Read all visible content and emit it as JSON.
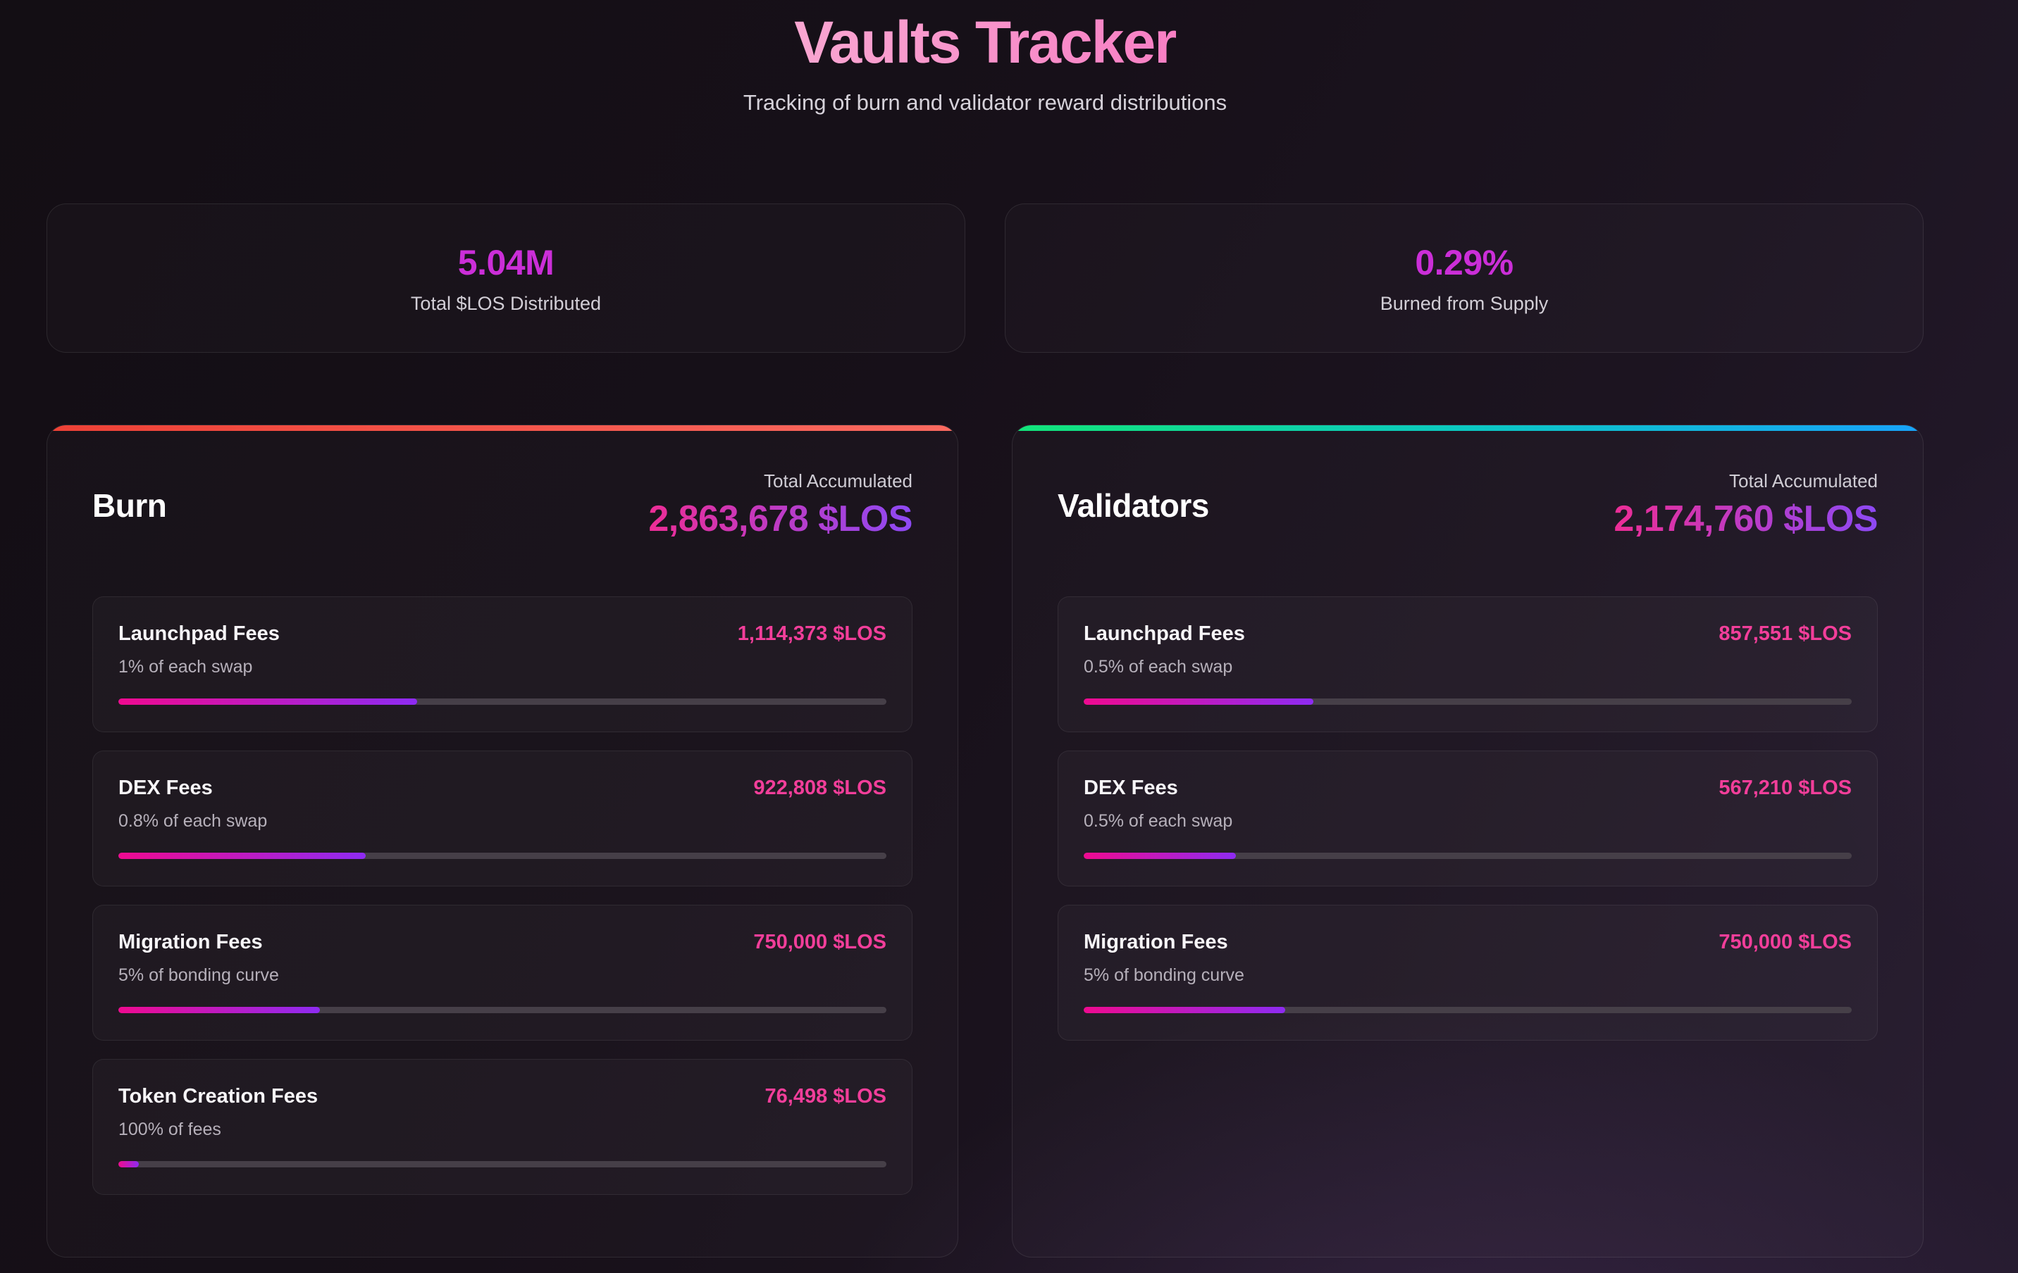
{
  "page": {
    "title": "Vaults Tracker",
    "subtitle": "Tracking of burn and validator reward distributions"
  },
  "stats": [
    {
      "value": "5.04M",
      "label": "Total $LOS Distributed"
    },
    {
      "value": "0.29%",
      "label": "Burned from Supply"
    }
  ],
  "vaults": [
    {
      "name": "Burn",
      "total_label": "Total Accumulated",
      "total": "2,863,678 $LOS",
      "accent_stops": [
        "#ee4136",
        "#fb6a60"
      ],
      "rows": [
        {
          "title": "Launchpad Fees",
          "subtitle": "1% of each swap",
          "value": "1,114,373 $LOS",
          "percent": 38.9
        },
        {
          "title": "DEX Fees",
          "subtitle": "0.8% of each swap",
          "value": "922,808 $LOS",
          "percent": 32.2
        },
        {
          "title": "Migration Fees",
          "subtitle": "5% of bonding curve",
          "value": "750,000 $LOS",
          "percent": 26.2
        },
        {
          "title": "Token Creation Fees",
          "subtitle": "100% of fees",
          "value": "76,498 $LOS",
          "percent": 2.7
        }
      ]
    },
    {
      "name": "Validators",
      "total_label": "Total Accumulated",
      "total": "2,174,760 $LOS",
      "accent_stops": [
        "#12e579",
        "#0bc8c2",
        "#18a3fa"
      ],
      "rows": [
        {
          "title": "Launchpad Fees",
          "subtitle": "0.5% of each swap",
          "value": "857,551 $LOS",
          "percent": 29.9
        },
        {
          "title": "DEX Fees",
          "subtitle": "0.5% of each swap",
          "value": "567,210 $LOS",
          "percent": 19.8
        },
        {
          "title": "Migration Fees",
          "subtitle": "5% of bonding curve",
          "value": "750,000 $LOS",
          "percent": 26.2
        }
      ]
    }
  ],
  "colors": {
    "title_from": "#f9a6d1",
    "title_to": "#f87fc4",
    "stat_value": "#cb2ed8",
    "total_from": "#ed2d96",
    "total_to": "#8d49f4",
    "row_value": "#f23e9a",
    "progress_from": "#ef0a90",
    "progress_to": "#8e2bf2",
    "progress_track": "#463f48"
  }
}
